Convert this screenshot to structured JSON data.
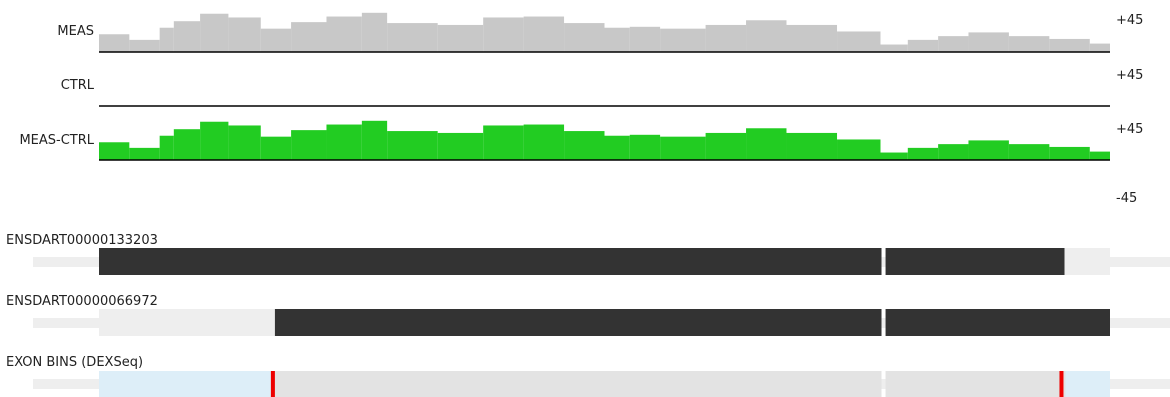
{
  "colors": {
    "meas": "#c8c8c8",
    "ctrl": "#c8c8c8",
    "diff": "#22cc22",
    "baseline": "#000000",
    "transcript_coding": "#333333",
    "transcript_utr": "#eeeeee",
    "intron_line": "#eeeeee",
    "exon_bin": "#e3e3e3",
    "exon_bin_utr": "#ddeef8",
    "significant_bin": "#ee0000"
  },
  "chart_data": {
    "type": "area",
    "x_domain": [
      0,
      1000
    ],
    "tracks": [
      {
        "name": "MEAS",
        "label": "MEAS",
        "scale_top": "+45",
        "scale_bottom": "",
        "ylim": [
          0,
          45
        ],
        "series": [
          {
            "from": 0,
            "to": 30,
            "value": 19
          },
          {
            "from": 30,
            "to": 60,
            "value": 13
          },
          {
            "from": 60,
            "to": 74,
            "value": 26
          },
          {
            "from": 74,
            "to": 100,
            "value": 33
          },
          {
            "from": 100,
            "to": 128,
            "value": 41
          },
          {
            "from": 128,
            "to": 160,
            "value": 37
          },
          {
            "from": 160,
            "to": 190,
            "value": 25
          },
          {
            "from": 190,
            "to": 225,
            "value": 32
          },
          {
            "from": 225,
            "to": 260,
            "value": 38
          },
          {
            "from": 260,
            "to": 285,
            "value": 42
          },
          {
            "from": 285,
            "to": 335,
            "value": 31
          },
          {
            "from": 335,
            "to": 380,
            "value": 29
          },
          {
            "from": 380,
            "to": 420,
            "value": 37
          },
          {
            "from": 420,
            "to": 460,
            "value": 38
          },
          {
            "from": 460,
            "to": 500,
            "value": 31
          },
          {
            "from": 500,
            "to": 525,
            "value": 26
          },
          {
            "from": 525,
            "to": 555,
            "value": 27
          },
          {
            "from": 555,
            "to": 600,
            "value": 25
          },
          {
            "from": 600,
            "to": 640,
            "value": 29
          },
          {
            "from": 640,
            "to": 680,
            "value": 34
          },
          {
            "from": 680,
            "to": 730,
            "value": 29
          },
          {
            "from": 730,
            "to": 773,
            "value": 22
          },
          {
            "from": 773,
            "to": 800,
            "value": 8
          },
          {
            "from": 800,
            "to": 830,
            "value": 13
          },
          {
            "from": 830,
            "to": 860,
            "value": 17
          },
          {
            "from": 860,
            "to": 900,
            "value": 21
          },
          {
            "from": 900,
            "to": 940,
            "value": 17
          },
          {
            "from": 940,
            "to": 980,
            "value": 14
          },
          {
            "from": 980,
            "to": 1000,
            "value": 9
          }
        ]
      },
      {
        "name": "CTRL",
        "label": "CTRL",
        "scale_top": "+45",
        "scale_bottom": "",
        "ylim": [
          0,
          45
        ],
        "series": []
      },
      {
        "name": "MEAS-CTRL",
        "label": "MEAS-CTRL",
        "scale_top": "+45",
        "scale_bottom": "-45",
        "ylim": [
          -45,
          45
        ],
        "series": [
          {
            "from": 0,
            "to": 30,
            "value": 19
          },
          {
            "from": 30,
            "to": 60,
            "value": 13
          },
          {
            "from": 60,
            "to": 74,
            "value": 26
          },
          {
            "from": 74,
            "to": 100,
            "value": 33
          },
          {
            "from": 100,
            "to": 128,
            "value": 41
          },
          {
            "from": 128,
            "to": 160,
            "value": 37
          },
          {
            "from": 160,
            "to": 190,
            "value": 25
          },
          {
            "from": 190,
            "to": 225,
            "value": 32
          },
          {
            "from": 225,
            "to": 260,
            "value": 38
          },
          {
            "from": 260,
            "to": 285,
            "value": 42
          },
          {
            "from": 285,
            "to": 335,
            "value": 31
          },
          {
            "from": 335,
            "to": 380,
            "value": 29
          },
          {
            "from": 380,
            "to": 420,
            "value": 37
          },
          {
            "from": 420,
            "to": 460,
            "value": 38
          },
          {
            "from": 460,
            "to": 500,
            "value": 31
          },
          {
            "from": 500,
            "to": 525,
            "value": 26
          },
          {
            "from": 525,
            "to": 555,
            "value": 27
          },
          {
            "from": 555,
            "to": 600,
            "value": 25
          },
          {
            "from": 600,
            "to": 640,
            "value": 29
          },
          {
            "from": 640,
            "to": 680,
            "value": 34
          },
          {
            "from": 680,
            "to": 730,
            "value": 29
          },
          {
            "from": 730,
            "to": 773,
            "value": 22
          },
          {
            "from": 773,
            "to": 800,
            "value": 8
          },
          {
            "from": 800,
            "to": 830,
            "value": 13
          },
          {
            "from": 830,
            "to": 860,
            "value": 17
          },
          {
            "from": 860,
            "to": 900,
            "value": 21
          },
          {
            "from": 900,
            "to": 940,
            "value": 17
          },
          {
            "from": 940,
            "to": 980,
            "value": 14
          },
          {
            "from": 980,
            "to": 1000,
            "value": 9
          }
        ]
      }
    ],
    "transcripts": [
      {
        "name": "ENSDART00000133203",
        "exons": [
          {
            "from": 0,
            "to": 774,
            "kind": "coding"
          },
          {
            "from": 778,
            "to": 955,
            "kind": "coding"
          },
          {
            "from": 955,
            "to": 1000,
            "kind": "utr"
          }
        ]
      },
      {
        "name": "ENSDART00000066972",
        "exons": [
          {
            "from": 0,
            "to": 174,
            "kind": "utr"
          },
          {
            "from": 174,
            "to": 774,
            "kind": "coding"
          },
          {
            "from": 778,
            "to": 1000,
            "kind": "coding"
          }
        ]
      }
    ],
    "exon_bins": {
      "name": "EXON BINS (DEXSeq)",
      "bins": [
        {
          "from": 0,
          "to": 172,
          "kind": "utr"
        },
        {
          "from": 172,
          "to": 774,
          "kind": "bin"
        },
        {
          "from": 778,
          "to": 956,
          "kind": "bin"
        },
        {
          "from": 956,
          "to": 1000,
          "kind": "utr"
        }
      ],
      "significant": [
        172,
        952
      ]
    }
  }
}
